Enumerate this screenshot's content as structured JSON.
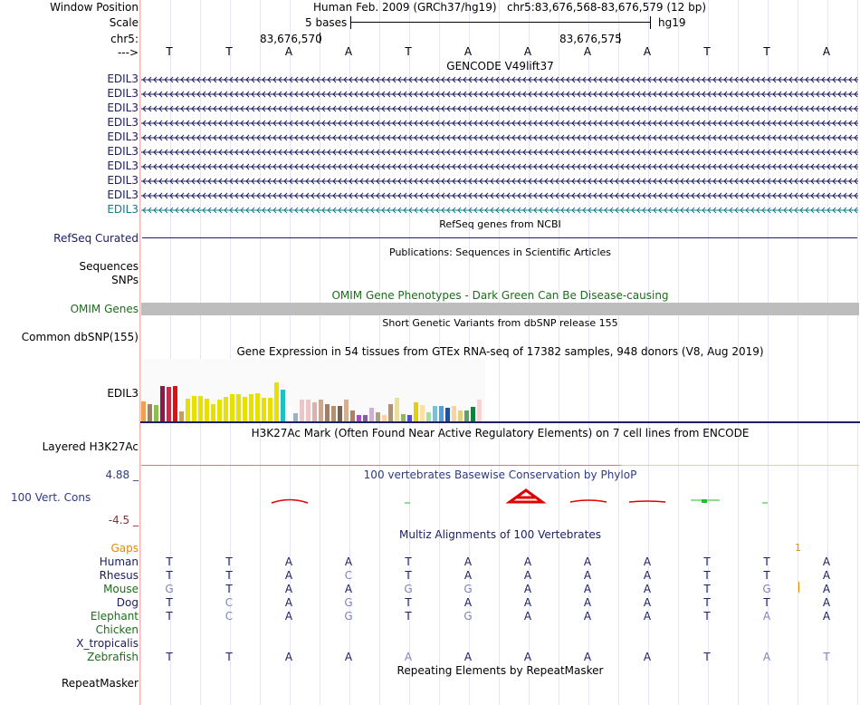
{
  "header": {
    "window_position_label": "Window Position",
    "scale_label": "Scale",
    "chrom_label": "chr5:",
    "strand_label": "--->",
    "assembly": "Human Feb. 2009 (GRCh37/hg19)",
    "position": "chr5:83,676,568-83,676,579 (12 bp)",
    "scale_text": "5 bases",
    "db": "hg19",
    "coord1": "83,676,570",
    "coord2": "83,676,575"
  },
  "bases": [
    "T",
    "T",
    "A",
    "A",
    "T",
    "A",
    "A",
    "A",
    "A",
    "T",
    "T",
    "A"
  ],
  "gencode": {
    "title": "GENCODE V49lift37",
    "rows": [
      "EDIL3",
      "EDIL3",
      "EDIL3",
      "EDIL3",
      "EDIL3",
      "EDIL3",
      "EDIL3",
      "EDIL3",
      "EDIL3",
      "EDIL3"
    ],
    "colors": {
      "navy": "#1d2062",
      "teal": "#177a8c"
    }
  },
  "refseq": {
    "title": "RefSeq genes from NCBI",
    "label": "RefSeq Curated"
  },
  "publications": {
    "title": "Publications: Sequences in Scientific Articles",
    "labels": [
      "Sequences",
      "SNPs"
    ]
  },
  "omim": {
    "title": "OMIM Gene Phenotypes - Dark Green Can Be Disease-causing",
    "label": "OMIM Genes"
  },
  "dbsnp": {
    "title": "Short Genetic Variants from dbSNP release 155",
    "label": "Common dbSNP(155)"
  },
  "gtex": {
    "title": "Gene Expression in 54 tissues from GTEx RNA-seq of 17382 samples, 948 donors (V8, Aug 2019)",
    "label": "EDIL3",
    "colors": [
      "#f0a050",
      "#a08060",
      "#8fbc50",
      "#8b1a4a",
      "#c0304b",
      "#e01010",
      "#c0a060",
      "#e8e000",
      "#e8e000",
      "#e8e000",
      "#e8e000",
      "#e8e000",
      "#e8e000",
      "#e8e000",
      "#e8e000",
      "#e8e000",
      "#e8e000",
      "#e8e000",
      "#e8e000",
      "#e8e000",
      "#e8e000",
      "#e8e000",
      "#20c0c0",
      "#ffffff",
      "#a0b0c0",
      "#eec4c4",
      "#eec4c4",
      "#dcb0b0",
      "#c8a890",
      "#a08060",
      "#b09070",
      "#7a6050",
      "#d4b090",
      "#b08060",
      "#a050c0",
      "#8060a0",
      "#d0b0d0",
      "#b0a080",
      "#ffd0a0",
      "#b09070",
      "#e8e0a0",
      "#8fbc50",
      "#5050d0",
      "#e8d000",
      "#ffe0a0",
      "#a0e0a0",
      "#80c0d0",
      "#50a0e0",
      "#2050a0",
      "#ffd0a0",
      "#e0d080",
      "#60a060",
      "#108040",
      "#ffd0d0"
    ],
    "values": [
      0.33,
      0.29,
      0.27,
      0.57,
      0.56,
      0.57,
      0.17,
      0.37,
      0.42,
      0.41,
      0.37,
      0.28,
      0.35,
      0.4,
      0.44,
      0.44,
      0.4,
      0.44,
      0.45,
      0.39,
      0.39,
      0.63,
      0.52,
      0.25,
      0.14,
      0.35,
      0.35,
      0.31,
      0.35,
      0.28,
      0.26,
      0.26,
      0.36,
      0.18,
      0.11,
      0.11,
      0.23,
      0.15,
      0.12,
      0.29,
      0.38,
      0.13,
      0.12,
      0.32,
      0.27,
      0.16,
      0.26,
      0.25,
      0.23,
      0.26,
      0.18,
      0.19,
      0.24,
      0.35
    ]
  },
  "h3k27ac": {
    "title": "H3K27Ac Mark (Often Found Near Active Regulatory Elements) on 7 cell lines from ENCODE",
    "label": "Layered H3K27Ac"
  },
  "conservation": {
    "title": "100 vertebrates Basewise Conservation by PhyloP",
    "label": "100 Vert. Cons",
    "max_label": "4.88 _",
    "min_label": "-4.5 _"
  },
  "multiz": {
    "title": "Multiz Alignments of 100 Vertebrates",
    "gaps_label": "Gaps",
    "gaps_marker": "1",
    "species": [
      {
        "name": "Human",
        "bases": [
          "T",
          "T",
          "A",
          "A",
          "T",
          "A",
          "A",
          "A",
          "A",
          "T",
          "T",
          "A"
        ],
        "color": "#1d2062"
      },
      {
        "name": "Rhesus",
        "bases": [
          "T",
          "T",
          "A",
          "C",
          "T",
          "A",
          "A",
          "A",
          "A",
          "T",
          "T",
          "A"
        ],
        "color": "#1d2062"
      },
      {
        "name": "Mouse",
        "bases": [
          "G",
          "T",
          "A",
          "A",
          "G",
          "G",
          "A",
          "A",
          "A",
          "T",
          "G",
          "A"
        ],
        "color": "#1a6e1a"
      },
      {
        "name": "Dog",
        "bases": [
          "T",
          "C",
          "A",
          "G",
          "T",
          "A",
          "A",
          "A",
          "A",
          "T",
          "T",
          "A"
        ],
        "color": "#1d2062"
      },
      {
        "name": "Elephant",
        "bases": [
          "T",
          "C",
          "A",
          "G",
          "T",
          "G",
          "A",
          "A",
          "A",
          "T",
          "A",
          "A"
        ],
        "color": "#1a6e1a"
      },
      {
        "name": "Chicken",
        "bases": [],
        "color": "#1a6e1a"
      },
      {
        "name": "X_tropicalis",
        "bases": [],
        "color": "#1d2062"
      },
      {
        "name": "Zebrafish",
        "bases": [
          "T",
          "T",
          "A",
          "A",
          "A",
          "A",
          "A",
          "A",
          "A",
          "T",
          "A",
          "T"
        ],
        "color": "#1a6e1a"
      }
    ]
  },
  "repeatmasker": {
    "title": "Repeating Elements by RepeatMasker",
    "label": "RepeatMasker"
  }
}
